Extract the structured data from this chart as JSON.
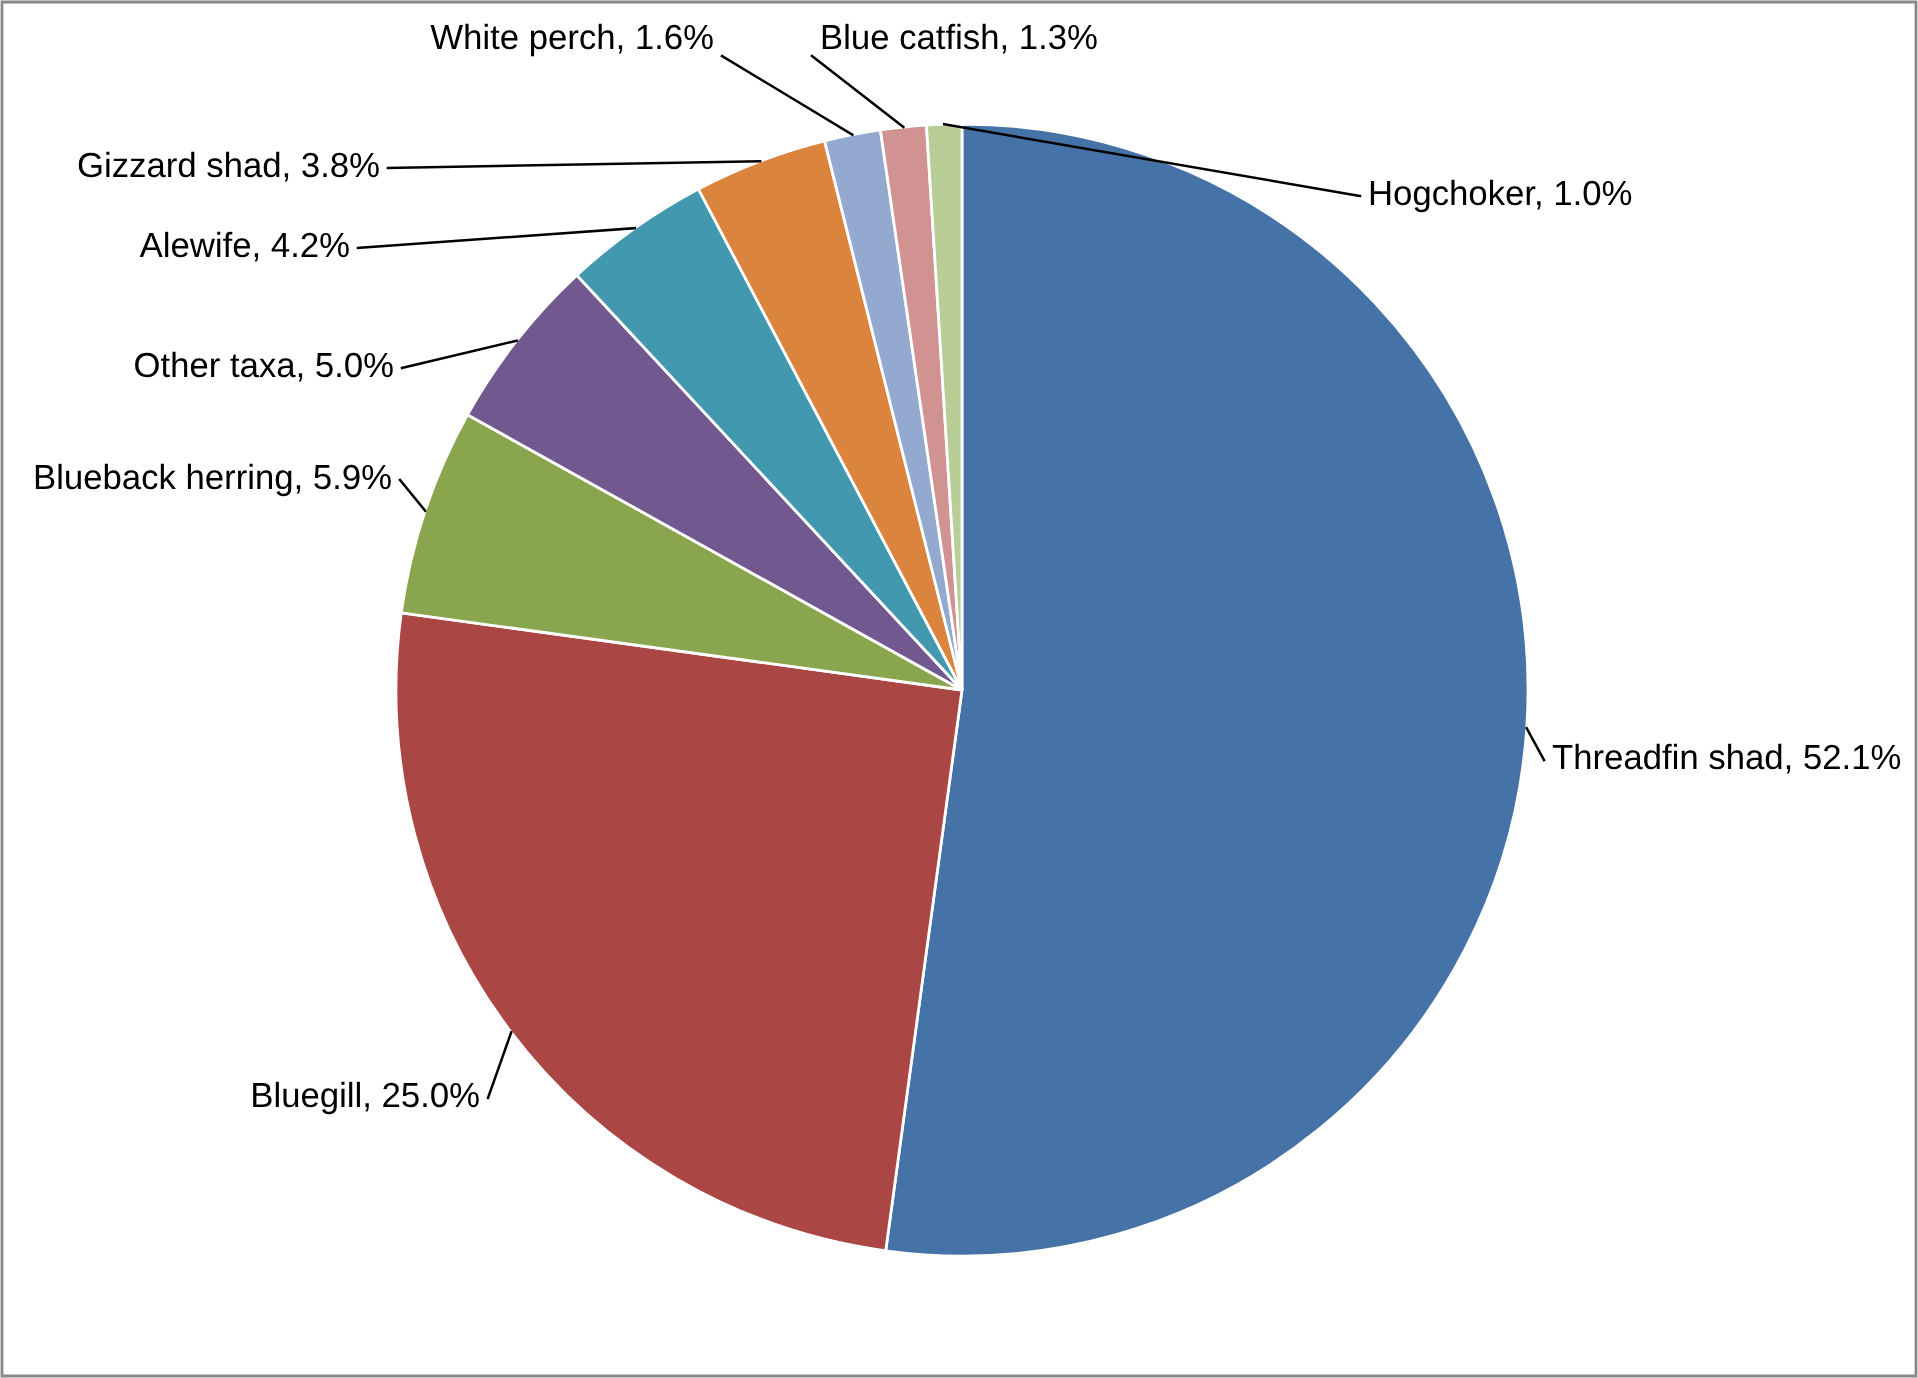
{
  "chart_data": {
    "type": "pie",
    "categories": [
      "Threadfin shad",
      "Bluegill",
      "Blueback herring",
      "Other taxa",
      "Alewife",
      "Gizzard shad",
      "White perch",
      "Blue catfish",
      "Hogchoker"
    ],
    "values": [
      52.1,
      25.0,
      5.9,
      5.0,
      4.2,
      3.8,
      1.6,
      1.3,
      1.0
    ],
    "value_labels": [
      "52.1%",
      "25.0%",
      "5.9%",
      "5.0%",
      "4.2%",
      "3.8%",
      "1.6%",
      "1.3%",
      "1.0%"
    ],
    "colors": [
      "#4572a7",
      "#aa4643",
      "#89a54e",
      "#71588f",
      "#4198af",
      "#db843d",
      "#93a9cf",
      "#d19392",
      "#b9cd96"
    ],
    "legend": false
  }
}
